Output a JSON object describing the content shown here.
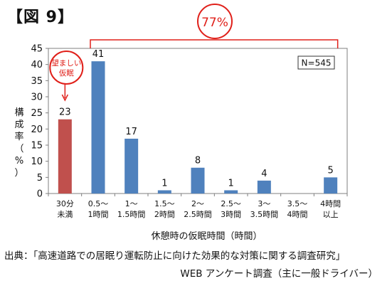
{
  "figure_title": "【図 9】",
  "source_line1": "出典：「高速道路での居眠り運転防止に向けた効果的な対策に関する調査研究」",
  "source_line2": "WEB アンケート調査（主に一般ドライバー）",
  "colors": {
    "accent_bar": "#c0504d",
    "main_bar": "#4f81bd",
    "annotation_red": "#e0201a"
  },
  "chart_data": {
    "type": "bar",
    "categories": [
      [
        "30分",
        "未満"
      ],
      [
        "0.5～",
        "1時間"
      ],
      [
        "1～",
        "1.5時間"
      ],
      [
        "1.5～",
        "2時間"
      ],
      [
        "2～",
        "2.5時間"
      ],
      [
        "2.5～",
        "3時間"
      ],
      [
        "3～",
        "3.5時間"
      ],
      [
        "3.5～",
        "4時間"
      ],
      [
        "4時間",
        "以上"
      ]
    ],
    "values": [
      23,
      41,
      17,
      1,
      8,
      1,
      4,
      null,
      5
    ],
    "data_labels": [
      "23",
      "41",
      "17",
      "1",
      "8",
      "1",
      "4",
      "",
      "5"
    ],
    "highlight_index": 0,
    "xlabel": "休憩時の仮眠時間（時間）",
    "ylabel": "構成率（%）",
    "ylim": [
      0,
      45
    ],
    "yticks": [
      0,
      5,
      10,
      15,
      20,
      25,
      30,
      35,
      40,
      45
    ],
    "grid": false,
    "legend": "N=545",
    "annotations": {
      "highlight_note": [
        "望ましい",
        "仮眠"
      ],
      "bracket_label": "77%"
    }
  }
}
